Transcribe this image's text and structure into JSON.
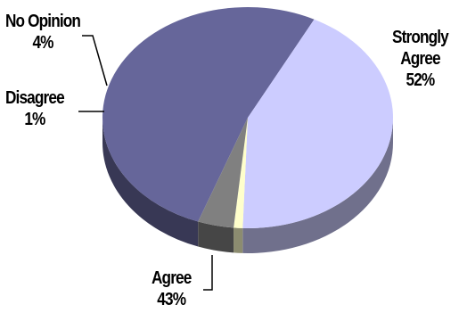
{
  "chart_data": {
    "type": "pie",
    "categories": [
      "Strongly Agree",
      "Agree",
      "Disagree",
      "No Opinion"
    ],
    "values": [
      52,
      43,
      1,
      4
    ],
    "value_labels": [
      "52%",
      "43%",
      "1%",
      "4%"
    ],
    "colors": {
      "strongly_agree": "#66669a",
      "agree": "#ccccff",
      "disagree": "#ffffcc",
      "no_opinion": "#808080"
    },
    "legend": "none",
    "style": "3d"
  }
}
